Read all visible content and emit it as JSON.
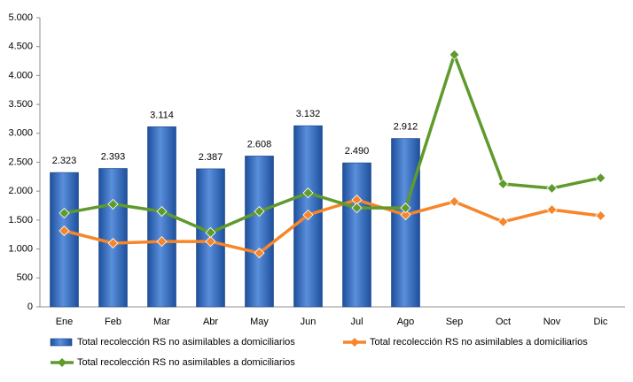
{
  "chart_data": {
    "type": "bar",
    "categories": [
      "Ene",
      "Feb",
      "Mar",
      "Abr",
      "May",
      "Jun",
      "Jul",
      "Ago",
      "Sep",
      "Oct",
      "Nov",
      "Dic"
    ],
    "ylim": [
      0,
      5000
    ],
    "yticks": [
      0,
      500,
      {
        "value": 1000,
        "label": "1.000"
      },
      {
        "value": 1500,
        "label": "1.500"
      },
      {
        "value": 2000,
        "label": "2.000"
      },
      {
        "value": 2500,
        "label": "2.500"
      },
      {
        "value": 3000,
        "label": "3.000"
      },
      {
        "value": 3500,
        "label": "3.500"
      },
      {
        "value": 4000,
        "label": "4.000"
      },
      {
        "value": 4500,
        "label": "4.500"
      },
      {
        "value": 5000,
        "label": "5.000"
      }
    ],
    "grid": false,
    "series": [
      {
        "name": "Total recolección RS no asimilables a domiciliarios",
        "type": "bar",
        "color": "#2e64b8",
        "values": [
          2323,
          2393,
          3114,
          2387,
          2608,
          3132,
          2490,
          2912,
          null,
          null,
          null,
          null
        ],
        "value_labels": [
          "2.323",
          "2.393",
          "3.114",
          "2.387",
          "2.608",
          "3.132",
          "2.490",
          "2.912",
          null,
          null,
          null,
          null
        ]
      },
      {
        "name": "Total recolección RS no asimilables a domiciliarios",
        "type": "line",
        "color": "#f7862a",
        "values": [
          1315,
          1100,
          1130,
          1130,
          930,
          1590,
          1850,
          1590,
          1820,
          1470,
          1680,
          1575
        ]
      },
      {
        "name": "Total recolección RS no asimilables a domiciliarios",
        "type": "line",
        "color": "#5f9a2c",
        "values": [
          1620,
          1775,
          1650,
          1285,
          1650,
          1970,
          1710,
          1710,
          4360,
          2125,
          2050,
          2230
        ]
      }
    ]
  }
}
